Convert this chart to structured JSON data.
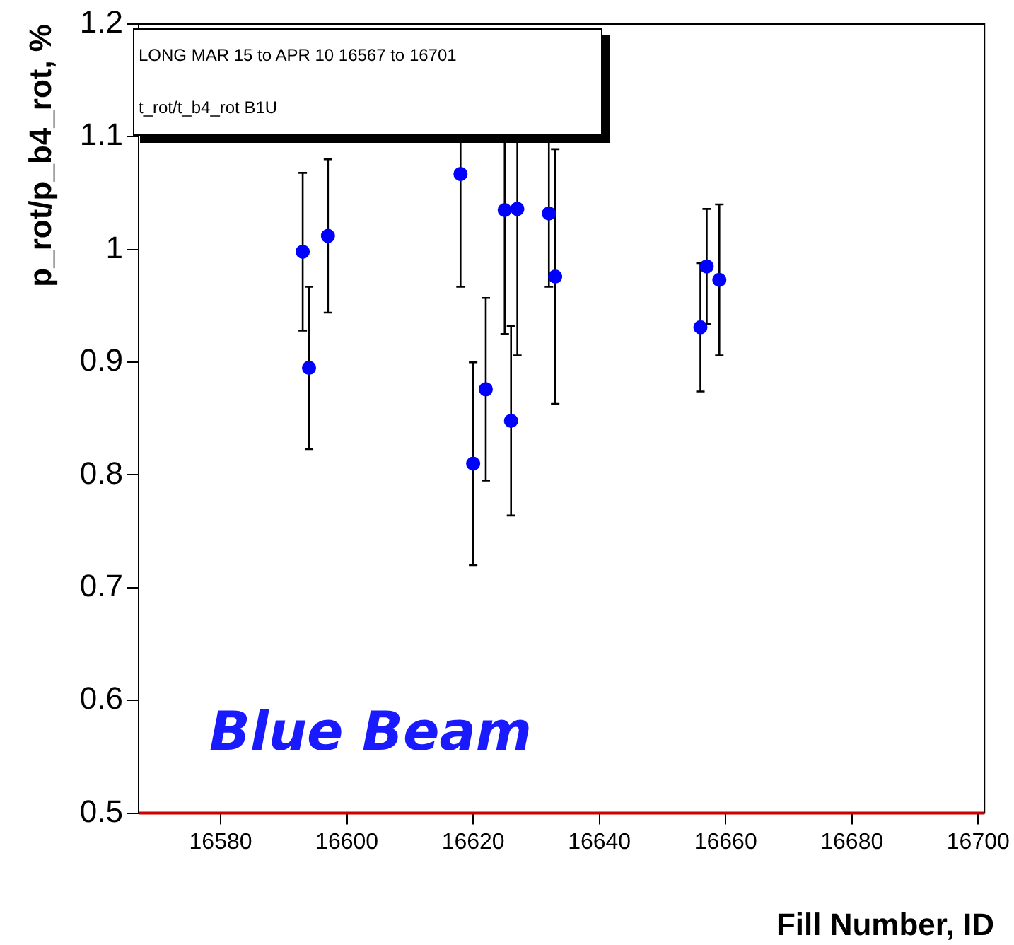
{
  "chart_data": {
    "type": "scatter",
    "title": "LONG MAR 15 to APR 10 16567 to 16701",
    "subtitle": "t_rot/t_b4_rot B1U",
    "xlabel": "Fill Number, ID",
    "ylabel": "p_rot/p_b4_rot, %",
    "annotations": [
      "Blue Beam"
    ],
    "series": [
      {
        "color": "#0000ff",
        "x": [
          16593,
          16594,
          16597,
          16618,
          16620,
          16622,
          16625,
          16626,
          16627,
          16632,
          16633,
          16656,
          16657,
          16659
        ],
        "values": [
          0.998,
          0.895,
          1.012,
          1.067,
          0.81,
          0.876,
          1.035,
          0.848,
          1.036,
          1.032,
          0.976,
          0.931,
          0.985,
          0.973
        ],
        "errors": [
          0.07,
          0.072,
          0.068,
          0.1,
          0.09,
          0.081,
          0.11,
          0.084,
          0.13,
          0.065,
          0.113,
          0.057,
          0.051,
          0.067
        ]
      }
    ],
    "xlim": [
      16567,
      16701
    ],
    "xticks": [
      16580,
      16600,
      16620,
      16640,
      16660,
      16680,
      16700
    ],
    "ylim": [
      0.5,
      1.2
    ],
    "yticks": [
      0.5,
      0.6,
      0.7,
      0.8,
      0.9,
      1,
      1.1,
      1.2
    ],
    "grid": false,
    "legend": false,
    "marker": "circle"
  }
}
